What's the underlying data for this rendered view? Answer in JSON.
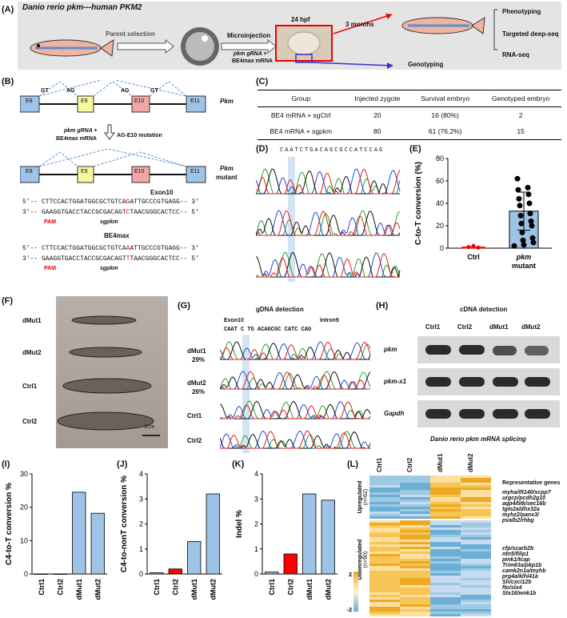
{
  "panels": {
    "A": "(A)",
    "B": "(B)",
    "C": "(C)",
    "D": "(D)",
    "E": "(E)",
    "F": "(F)",
    "G": "(G)",
    "H": "(H)",
    "I": "(I)",
    "J": "(J)",
    "K": "(K)",
    "L": "(L)"
  },
  "A": {
    "title": "Danio rerio pkm---human PKM2",
    "parent": "Parent selection",
    "micro": "Microinjection",
    "inj1": "pkm gRNA +",
    "inj2": "BE4max mRNA",
    "hpf": "24 hpf",
    "months": "3 months",
    "geno": "Genotyping",
    "out": [
      "Phenotyping",
      "Targeted deep-seq",
      "RNA-seq"
    ]
  },
  "B": {
    "exons_wt": [
      "E8",
      "E9",
      "E10",
      "E11"
    ],
    "gt": "GT",
    "ag": "AG",
    "gene": "Pkm",
    "step1": "pkm gRNA +",
    "step2": "BE4max mRNA",
    "mut": "AG-E10 mutation",
    "gene_mut": "Pkm",
    "mutant": "mutant",
    "exon10": "Exon10",
    "s1a": "5′-- CTTCCACTGGATGGCGCTGTCA",
    "s1b": "G",
    "s1c": "ATTGCCCGTGAGG-- 3′",
    "s2a": "3′-- GAAGGTGACCTACCGCGACAGT",
    "s2b": "C",
    "s2c": "TAACGGGCACTCC-- 5′",
    "pam": "PAM",
    "sg": "sgpkm",
    "be4": "BE4max",
    "s3a": "5′-- CTTCCACTGGATGGCGCTGTCA",
    "s3b": "A",
    "s3c": "ATTGCCCGTGAGG-- 3′",
    "s4a": "3′-- GAAGGTGACCTACCGCGACAGT",
    "s4b": "T",
    "s4c": "TAACGGGCACTCC-- 5′"
  },
  "C": {
    "headers": [
      "Group",
      "Injected zygote",
      "Survival embryo",
      "Genotyped embryo"
    ],
    "rows": [
      [
        "BE4 mRNA + sgCtrl",
        "20",
        "16 (80%)",
        "2"
      ],
      [
        "BE4 mRNA + sgpkm",
        "80",
        "61 (76.2%)",
        "15"
      ]
    ]
  },
  "D": {
    "seq": "CAATCTGACAGCGCCATCCAG"
  },
  "F": {
    "labels": [
      "dMut1",
      "dMut2",
      "Ctrl1",
      "Ctrl2"
    ],
    "scale": "1cm"
  },
  "G": {
    "title": "gDNA detection",
    "exon": "Exon10",
    "intron": "Intron9",
    "seq": "CAAT C TG ACAGCGC CATC CAG",
    "samples": [
      {
        "name": "dMut1",
        "pct": "29%"
      },
      {
        "name": "dMut2",
        "pct": "26%"
      },
      {
        "name": "Ctrl1",
        "pct": ""
      },
      {
        "name": "Ctrl2",
        "pct": ""
      }
    ]
  },
  "H": {
    "title": "cDNA detection",
    "lanes": [
      "Ctrl1",
      "Ctrl2",
      "dMut1",
      "dMut2"
    ],
    "genes": [
      "pkm",
      "pkm-x1",
      "Gapdh"
    ],
    "caption": "Danio rerio  pkm mRNA splicing"
  },
  "L": {
    "cols": [
      "Ctrl1",
      "Ctrl2",
      "dMut1",
      "dMut2"
    ],
    "up": "Upregulated",
    "up_n": "(n=62)",
    "down": "Downregulated",
    "down_n": "(n=90)",
    "rep": "Representative genes",
    "up_genes": [
      "myha/ift140/scpp7",
      "urgcp/pcdh2g10",
      "aqp4/btk/sec16b",
      "tgm2a/dhx32a",
      "myhz2/panx3/",
      "pvalb2/rhbg"
    ],
    "down_genes": [
      "cfp/scarb2b",
      "ntn5/filip1",
      "pink1/tcap",
      "Trim63a/pkp1b",
      "camk2n1a/myhb",
      "prg4a/klhl41a",
      "Sh/cxcl12b",
      "fto/slx4",
      "Stx16/wnk1b"
    ],
    "scale_max": "2",
    "scale_min": "-2"
  },
  "chart_data": [
    {
      "type": "bar",
      "panel": "E",
      "categories": [
        "Ctrl",
        "pkm mutant"
      ],
      "values": [
        1,
        33
      ],
      "error": [
        1,
        17
      ],
      "ylabel": "C-to-T conversion (%)",
      "ylim": [
        0,
        80
      ],
      "yticks": [
        0,
        20,
        40,
        60,
        80
      ],
      "points": [
        2,
        3,
        5,
        7,
        9,
        14,
        20,
        22,
        24,
        29,
        31,
        38,
        40,
        44,
        48,
        52,
        54,
        62
      ]
    },
    {
      "type": "bar",
      "panel": "I",
      "categories": [
        "Ctrl1",
        "Ctrl2",
        "dMut1",
        "dMut2"
      ],
      "values": [
        0,
        0,
        24.5,
        18.2
      ],
      "ylabel": "C4-to-T conversion %",
      "ylim": [
        0,
        30
      ],
      "yticks": [
        0,
        10,
        20,
        30
      ],
      "colors": [
        "#9dc3e6",
        "#9dc3e6",
        "#9dc3e6",
        "#9dc3e6"
      ]
    },
    {
      "type": "bar",
      "panel": "J",
      "categories": [
        "Ctrl1",
        "Ctrl2",
        "dMut1",
        "dMut2"
      ],
      "values": [
        0.05,
        0.2,
        1.3,
        3.2
      ],
      "ylabel": "C4-to-nonT conversion %",
      "ylim": [
        0,
        4
      ],
      "yticks": [
        0,
        1,
        2,
        3,
        4
      ],
      "colors": [
        "#9dc3e6",
        "#ff0000",
        "#9dc3e6",
        "#9dc3e6"
      ]
    },
    {
      "type": "bar",
      "panel": "K",
      "categories": [
        "Ctrl1",
        "Ctrl2",
        "dMut1",
        "dMut2"
      ],
      "values": [
        0.08,
        0.8,
        3.2,
        2.95
      ],
      "ylabel": "Indel %",
      "ylim": [
        0,
        4
      ],
      "yticks": [
        0,
        1,
        2,
        3,
        4
      ],
      "colors": [
        "#9dc3e6",
        "#ff0000",
        "#9dc3e6",
        "#9dc3e6"
      ]
    }
  ]
}
